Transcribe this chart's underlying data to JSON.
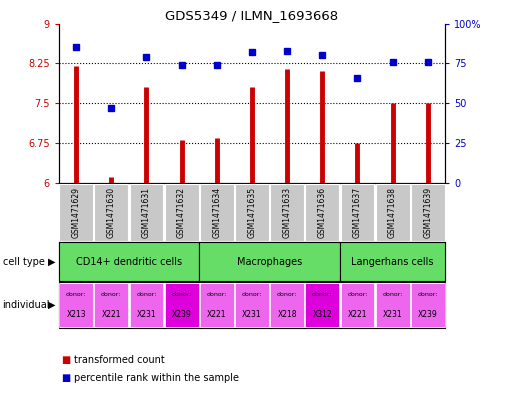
{
  "title": "GDS5349 / ILMN_1693668",
  "samples": [
    "GSM1471629",
    "GSM1471630",
    "GSM1471631",
    "GSM1471632",
    "GSM1471634",
    "GSM1471635",
    "GSM1471633",
    "GSM1471636",
    "GSM1471637",
    "GSM1471638",
    "GSM1471639"
  ],
  "red_values": [
    8.2,
    6.1,
    7.8,
    6.8,
    6.85,
    7.8,
    8.15,
    8.1,
    6.75,
    7.5,
    7.5
  ],
  "blue_values": [
    85,
    47,
    79,
    74,
    74,
    82,
    83,
    80,
    66,
    76,
    76
  ],
  "ylim_left": [
    6,
    9
  ],
  "ylim_right": [
    0,
    100
  ],
  "yticks_left": [
    6,
    6.75,
    7.5,
    8.25,
    9
  ],
  "yticks_right": [
    0,
    25,
    50,
    75,
    100
  ],
  "ytick_labels_left": [
    "6",
    "6.75",
    "7.5",
    "8.25",
    "9"
  ],
  "ytick_labels_right": [
    "0",
    "25",
    "50",
    "75",
    "100%"
  ],
  "hlines": [
    6.75,
    7.5,
    8.25
  ],
  "cell_groups": [
    {
      "label": "CD14+ dendritic cells",
      "cols": [
        0,
        1,
        2,
        3
      ]
    },
    {
      "label": "Macrophages",
      "cols": [
        4,
        5,
        6,
        7
      ]
    },
    {
      "label": "Langerhans cells",
      "cols": [
        8,
        9,
        10
      ]
    }
  ],
  "ind_labels": [
    "X213",
    "X221",
    "X231",
    "X239",
    "X221",
    "X231",
    "X218",
    "X312",
    "X221",
    "X231",
    "X239"
  ],
  "ind_highlight": [
    3,
    7
  ],
  "bar_color": "#CC0000",
  "dot_color": "#0000CC",
  "base_value": 6.0,
  "left_label_color": "#CC0000",
  "right_label_color": "#0000CC",
  "sample_bg_color": "#C8C8C8",
  "cell_type_color": "#66DD66",
  "ind_color_normal": "#EE66EE",
  "ind_color_highlight": "#DD00DD",
  "legend_red_label": "transformed count",
  "legend_blue_label": "percentile rank within the sample",
  "cell_type_label": "cell type",
  "individual_label": "individual"
}
